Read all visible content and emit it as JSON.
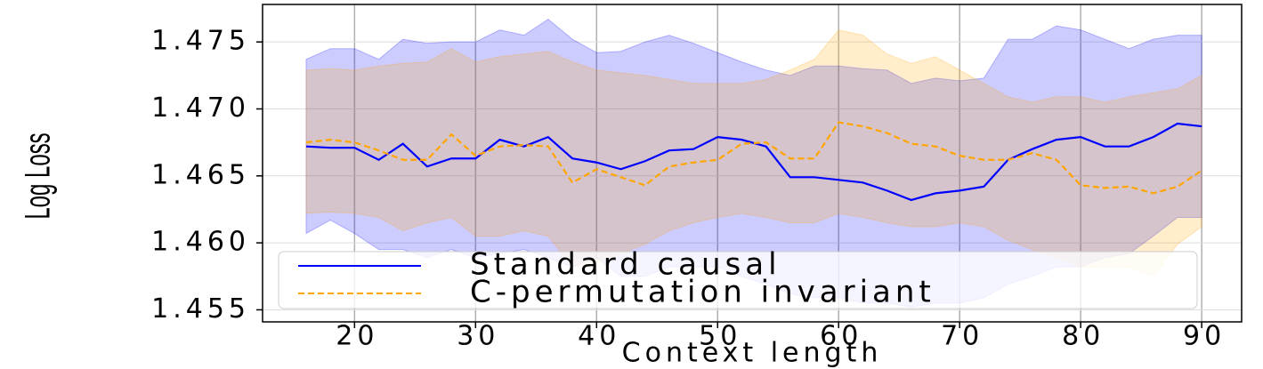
{
  "chart_data": {
    "type": "line",
    "xlabel": "Context length",
    "ylabel": "Log Loss",
    "x": [
      16,
      18,
      20,
      22,
      24,
      26,
      28,
      30,
      32,
      34,
      36,
      38,
      40,
      42,
      44,
      46,
      48,
      50,
      52,
      54,
      56,
      58,
      60,
      62,
      64,
      66,
      68,
      70,
      72,
      74,
      76,
      78,
      80,
      82,
      84,
      86,
      88,
      90
    ],
    "series": [
      {
        "name": "Standard causal",
        "color": "#0000ff",
        "linestyle": "solid",
        "values": [
          1.4672,
          1.4671,
          1.4671,
          1.4662,
          1.4674,
          1.4657,
          1.4663,
          1.4663,
          1.4677,
          1.4672,
          1.4679,
          1.4663,
          1.466,
          1.4655,
          1.4661,
          1.4669,
          1.467,
          1.4679,
          1.4677,
          1.4672,
          1.4649,
          1.4649,
          1.4647,
          1.4645,
          1.4639,
          1.4632,
          1.4637,
          1.4639,
          1.4642,
          1.4662,
          1.467,
          1.4677,
          1.4679,
          1.4672,
          1.4672,
          1.4679,
          1.4689,
          1.4687
        ],
        "upper": [
          1.4737,
          1.4745,
          1.4745,
          1.4737,
          1.4752,
          1.4749,
          1.475,
          1.475,
          1.4759,
          1.4755,
          1.4767,
          1.4752,
          1.4742,
          1.4743,
          1.475,
          1.4755,
          1.4749,
          1.4742,
          1.4735,
          1.4729,
          1.4725,
          1.4732,
          1.4732,
          1.473,
          1.4729,
          1.4719,
          1.4723,
          1.4721,
          1.4723,
          1.4752,
          1.4752,
          1.4762,
          1.4759,
          1.4752,
          1.4745,
          1.4752,
          1.4755,
          1.4755
        ],
        "lower": [
          1.4607,
          1.4617,
          1.4607,
          1.4595,
          1.4595,
          1.4589,
          1.4595,
          1.4589,
          1.4592,
          1.4595,
          1.4589,
          1.4582,
          1.4589,
          1.4575,
          1.4575,
          1.4582,
          1.4582,
          1.4582,
          1.4575,
          1.4569,
          1.4562,
          1.4559,
          1.4559,
          1.4555,
          1.4555,
          1.4552,
          1.4555,
          1.4555,
          1.4559,
          1.4569,
          1.4575,
          1.4582,
          1.4582,
          1.4589,
          1.4592,
          1.4605,
          1.4619,
          1.4619
        ]
      },
      {
        "name": "C-permutation invariant",
        "color": "#ffa500",
        "linestyle": "dashed",
        "values": [
          1.4675,
          1.4677,
          1.4675,
          1.4669,
          1.4662,
          1.4662,
          1.4681,
          1.4665,
          1.4672,
          1.4673,
          1.4672,
          1.4645,
          1.4655,
          1.4649,
          1.4643,
          1.4657,
          1.466,
          1.4662,
          1.4674,
          1.4675,
          1.4663,
          1.4663,
          1.469,
          1.4687,
          1.4682,
          1.4674,
          1.4672,
          1.4665,
          1.4662,
          1.4662,
          1.4667,
          1.4662,
          1.4643,
          1.4641,
          1.4642,
          1.4637,
          1.4642,
          1.4654
        ],
        "upper": [
          1.4729,
          1.473,
          1.4729,
          1.4732,
          1.4734,
          1.4735,
          1.4745,
          1.4735,
          1.4739,
          1.4741,
          1.4743,
          1.4735,
          1.4729,
          1.4727,
          1.4725,
          1.4722,
          1.4719,
          1.4719,
          1.4719,
          1.4722,
          1.4729,
          1.4737,
          1.4759,
          1.4755,
          1.4741,
          1.4734,
          1.4739,
          1.4729,
          1.4719,
          1.4709,
          1.4705,
          1.4709,
          1.4709,
          1.4705,
          1.4709,
          1.4712,
          1.4715,
          1.4725
        ],
        "lower": [
          1.4622,
          1.4623,
          1.4622,
          1.4619,
          1.4609,
          1.4615,
          1.4619,
          1.4605,
          1.4605,
          1.4609,
          1.4605,
          1.4582,
          1.4585,
          1.4592,
          1.4599,
          1.4609,
          1.4615,
          1.4619,
          1.4622,
          1.4619,
          1.4615,
          1.4615,
          1.4622,
          1.4619,
          1.4615,
          1.4612,
          1.4612,
          1.4615,
          1.4612,
          1.4602,
          1.4595,
          1.4589,
          1.4582,
          1.4582,
          1.4582,
          1.4575,
          1.4599,
          1.4612
        ]
      }
    ],
    "xlim": [
      12.4,
      93.3
    ],
    "xticks": [
      20,
      30,
      40,
      50,
      60,
      70,
      80,
      90
    ],
    "ylim": [
      1.4541,
      1.4778
    ],
    "yticks": [
      1.455,
      {
        "value": 1.46,
        "label": "1.460"
      },
      1.465,
      {
        "value": 1.47,
        "label": "1.470"
      },
      1.475
    ],
    "grid": true,
    "legend": "lower center"
  }
}
